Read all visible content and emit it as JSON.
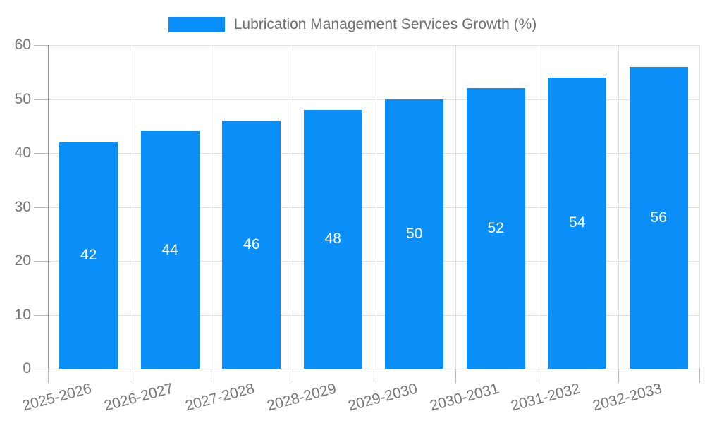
{
  "chart_data": {
    "type": "bar",
    "categories": [
      "2025-2026",
      "2026-2027",
      "2027-2028",
      "2028-2029",
      "2029-2030",
      "2030-2031",
      "2031-2032",
      "2032-2033"
    ],
    "series": [
      {
        "name": "Lubrication Management Services Growth (%)",
        "values": [
          42,
          44,
          46,
          48,
          50,
          52,
          54,
          56
        ],
        "color": "#0A8FF8"
      }
    ],
    "legend_position": "top",
    "xlabel": "",
    "ylabel": "",
    "ylim": [
      0,
      60
    ],
    "y_tick_step": 10,
    "y_tick_labels": [
      "0",
      "10",
      "20",
      "30",
      "40",
      "50",
      "60"
    ],
    "x_tick_rotation_deg": -15,
    "grid": {
      "horizontal": true,
      "vertical": true,
      "color": "#e0e0e0"
    },
    "value_labels": {
      "visible": true,
      "color": "#ffffff",
      "position": "middle-of-bar"
    },
    "colors": {
      "axis_y": "#919191",
      "axis_x": "#b3b3b3",
      "tick": "#b9b9b9",
      "tick_label": "#757575",
      "legend_text": "#6e6e6e",
      "background": "#ffffff"
    }
  }
}
